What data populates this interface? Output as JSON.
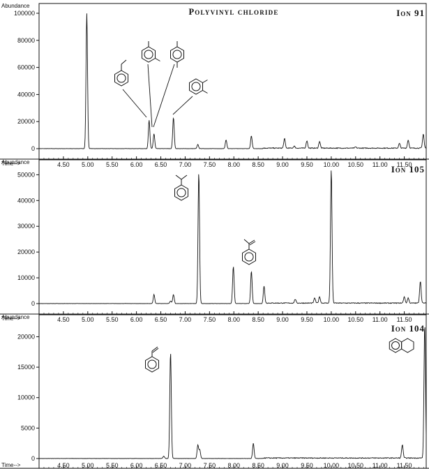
{
  "title": "Polyvinyl chloride",
  "chart_data": [
    {
      "type": "line",
      "ion_label": "Ion 91",
      "ylabel": "Abundance",
      "xlabel": "Time-->",
      "xlim": [
        4.0,
        11.95
      ],
      "ylim": [
        0,
        100000
      ],
      "yticks": [
        0,
        20000,
        40000,
        60000,
        80000,
        100000
      ],
      "xticks": [
        "4.50",
        "5.00",
        "5.50",
        "6.00",
        "6.50",
        "7.00",
        "7.50",
        "8.00",
        "8.50",
        "9.00",
        "9.50",
        "10.00",
        "10.50",
        "11.00",
        "11.50"
      ],
      "peaks": [
        {
          "t": 4.98,
          "h": 100000
        },
        {
          "t": 6.26,
          "h": 21000
        },
        {
          "t": 6.36,
          "h": 11000
        },
        {
          "t": 6.76,
          "h": 23000
        },
        {
          "t": 7.26,
          "h": 3000
        },
        {
          "t": 7.84,
          "h": 6500
        },
        {
          "t": 8.36,
          "h": 9500
        },
        {
          "t": 9.04,
          "h": 7000
        },
        {
          "t": 9.24,
          "h": 1500
        },
        {
          "t": 9.5,
          "h": 5500
        },
        {
          "t": 9.76,
          "h": 5000
        },
        {
          "t": 10.5,
          "h": 800
        },
        {
          "t": 11.4,
          "h": 3500
        },
        {
          "t": 11.58,
          "h": 6000
        },
        {
          "t": 11.89,
          "h": 10500
        }
      ]
    },
    {
      "type": "line",
      "ion_label": "Ion 105",
      "ylabel": "Abundance",
      "xlabel": "Time-->",
      "xlim": [
        4.0,
        11.95
      ],
      "ylim": [
        0,
        52000
      ],
      "yticks": [
        0,
        10000,
        20000,
        30000,
        40000,
        50000
      ],
      "xticks": [
        "4.50",
        "5.00",
        "5.50",
        "6.00",
        "6.50",
        "7.00",
        "7.50",
        "8.00",
        "8.50",
        "9.00",
        "9.50",
        "10.00",
        "10.50",
        "11.00",
        "11.50"
      ],
      "peaks": [
        {
          "t": 6.36,
          "h": 3500
        },
        {
          "t": 6.7,
          "h": 1000
        },
        {
          "t": 6.76,
          "h": 3500
        },
        {
          "t": 7.28,
          "h": 51000
        },
        {
          "t": 7.99,
          "h": 14500
        },
        {
          "t": 8.36,
          "h": 12500
        },
        {
          "t": 8.62,
          "h": 6500
        },
        {
          "t": 9.26,
          "h": 1500
        },
        {
          "t": 9.66,
          "h": 2000
        },
        {
          "t": 9.76,
          "h": 2500
        },
        {
          "t": 10.0,
          "h": 52000
        },
        {
          "t": 11.5,
          "h": 2500
        },
        {
          "t": 11.58,
          "h": 2000
        },
        {
          "t": 11.83,
          "h": 8500
        }
      ]
    },
    {
      "type": "line",
      "ion_label": "Ion 104",
      "ylabel": "Abundance",
      "xlabel": "Time-->",
      "xlim": [
        4.0,
        11.95
      ],
      "ylim": [
        0,
        22000
      ],
      "yticks": [
        0,
        5000,
        10000,
        15000,
        20000
      ],
      "xticks": [
        "4.50",
        "5.00",
        "5.50",
        "6.00",
        "6.50",
        "7.00",
        "7.50",
        "8.00",
        "8.50",
        "9.00",
        "9.50",
        "10.00",
        "10.50",
        "11.00",
        "11.50"
      ],
      "peaks": [
        {
          "t": 6.56,
          "h": 400
        },
        {
          "t": 6.7,
          "h": 17500
        },
        {
          "t": 7.26,
          "h": 2200
        },
        {
          "t": 7.3,
          "h": 1400
        },
        {
          "t": 8.4,
          "h": 2500
        },
        {
          "t": 11.46,
          "h": 2200
        },
        {
          "t": 11.92,
          "h": 22000
        }
      ]
    }
  ]
}
